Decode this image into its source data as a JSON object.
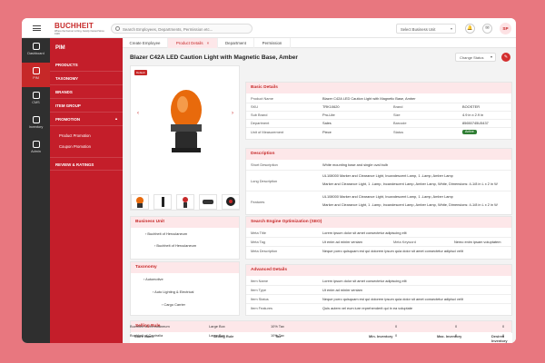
{
  "logo": {
    "text": "BUCHHEIT",
    "tagline": "Where the Farmer is King. Family Owned Since 1936"
  },
  "search": {
    "placeholder": "Search Employees, Departments, Permission etc..."
  },
  "business_unit": {
    "placeholder": "Select Business Unit"
  },
  "user": {
    "initials": "SP"
  },
  "rail": [
    {
      "label": "Dashboard",
      "active": false
    },
    {
      "label": "PIM",
      "active": true
    },
    {
      "label": "CMS",
      "active": false
    },
    {
      "label": "Inventory",
      "active": false
    },
    {
      "label": "Admin",
      "active": false
    }
  ],
  "module": {
    "title": "PIM",
    "items": [
      "PRODUCTS",
      "TAXONOMY",
      "BRANDS",
      "ITEM GROUP",
      "PROMOTION"
    ],
    "promotion_sub": [
      "Product Promotion",
      "Coupon Promotion"
    ],
    "review": "REVIEW & RATINGS"
  },
  "tabs": [
    "Create Employee",
    "Product Details",
    "Department",
    "Permission"
  ],
  "page": {
    "title": "Blazer C42A LED Caution Light with Magnetic Base, Amber",
    "status_label": "Change Status",
    "image_badge": "Default"
  },
  "basic_details": {
    "header": "Basic Details",
    "product_name_label": "Product Name",
    "product_name": "Blazer C42A LED Caution Light with Magnetic Base, Amber",
    "sku_label": "SKU",
    "sku": "TRK10620",
    "brand_label": "Brand",
    "brand": "BOOSTER",
    "sub_brand_label": "Sub Brand",
    "sub_brand": "Pro-Lite",
    "size_label": "Size",
    "size": "4.9 in x 2.9 in",
    "department_label": "Department",
    "department": "Sales",
    "barcode_label": "Barcode",
    "barcode": "85650745U5437",
    "uom_label": "Unit of Measurement",
    "uom": "Piece",
    "status_label": "Status",
    "status": "Active"
  },
  "description": {
    "header": "Description",
    "short_label": "Short Description",
    "short": "White mounting base and single oval bulb",
    "long_label": "Long Description",
    "long_1": "UL108000 Marker and Clearance Light, Incandescent Lamp, 1 -Lamp, Amber Lamp",
    "long_2": "Marker and Clearance Light, 1 -Lamp, Incandescent Lamp, Amber Lamp, White, Dimensions: 4-1/8 in L x 2 in W",
    "features_label": "Features",
    "features_1": "UL108000 Marker and Clearance Light, Incandescent Lamp, 1 -Lamp, Amber Lamp",
    "features_2": "Marker and Clearance Light, 1 -Lamp, Incandescent Lamp, Amber Lamp, White, Dimensions: 4-1/8 in L x 2 in W"
  },
  "business_unit_card": {
    "header": "Business Unit",
    "level1": "Buchheit of Herculaneum",
    "level2": "Buchheit of Herculaneum"
  },
  "taxonomy": {
    "header": "Taxonomy",
    "level1": "Automotive",
    "level2": "Auto Lighting & Electrical",
    "level3": "Cargo Carrier"
  },
  "seo": {
    "header": "Search Engine Optimization (SEO)",
    "meta_title_label": "Meta Title",
    "meta_title": "Lorem ipsum dolor sit amet consectetur adipiscing elit",
    "meta_tag_label": "Meta Tag",
    "meta_tag": "Ut enim ad minim veniam",
    "meta_keyword_label": "Meta Keyword",
    "meta_keyword": "Nemo enim ipsam voluptatem",
    "meta_desc_label": "Meta Description",
    "meta_desc": "Neque porro quisquam est qui dolorem ipsum quia dolor sit amet consectetur adipisci velit"
  },
  "advanced": {
    "header": "Advanced Details",
    "item_name_label": "Item Name",
    "item_name": "Lorem ipsum dolor sit amet consectetur adipiscing elit",
    "item_type_label": "Item Type",
    "item_type": "Ut enim ad minim veniam",
    "item_status_label": "Item Status",
    "item_status": "Neque porro quisquam est qui dolorem ipsum quia dolor sit amet consectetur adipisci velit",
    "item_features_label": "Item Features",
    "item_features": "Quis autem vel eum iure reprehenderit qui in ea voluptate"
  },
  "selling_rule": {
    "header": "Selling Rule",
    "columns": [
      "Store Name",
      "Selling Rule",
      "Tax",
      "Min. Inventory",
      "Max. Inventory",
      "Desired Inventory"
    ],
    "rows": [
      [
        "Buchheit of Herculaneum",
        "Large Box",
        "10% Tax",
        "0",
        "0",
        "0"
      ],
      [
        "Buchheit of Centralia",
        "Large Box",
        "10% Tax",
        "0",
        "0",
        "0"
      ]
    ]
  }
}
